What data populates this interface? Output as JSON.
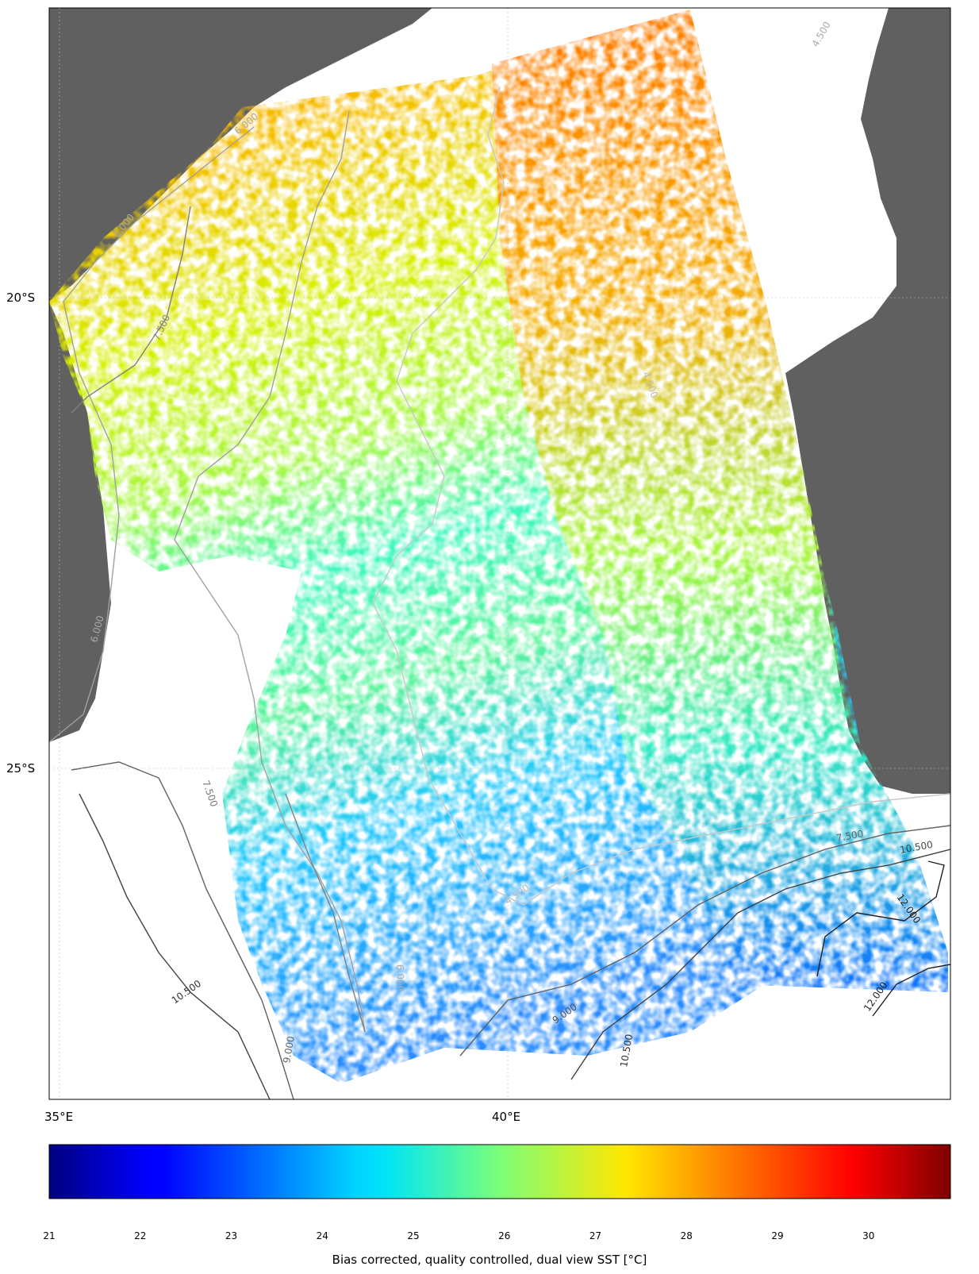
{
  "map": {
    "lat_labels": [
      {
        "text": "20°S"
      },
      {
        "text": "25°S"
      }
    ],
    "lon_labels": [
      {
        "text": "35°E"
      },
      {
        "text": "40°E"
      }
    ],
    "contour_labels": [
      "6.000",
      "6.000",
      "7.500",
      "6.000",
      "4.500",
      "7.500",
      "4.500",
      "6.000",
      "9.000",
      "10.500",
      "10.500",
      "7.500",
      "10.500",
      "12.000",
      "12.000",
      "9.000",
      "4.500"
    ],
    "colors": {
      "land": "#606060",
      "no_data": "#ffffff",
      "frame": "#000000"
    }
  },
  "colorbar": {
    "min": 21,
    "max": 30.9,
    "ticks": [
      "21",
      "22",
      "23",
      "24",
      "25",
      "26",
      "27",
      "28",
      "29",
      "30"
    ],
    "title": "Bias corrected, quality controlled, dual view SST [°C]",
    "colormap": "jet"
  }
}
